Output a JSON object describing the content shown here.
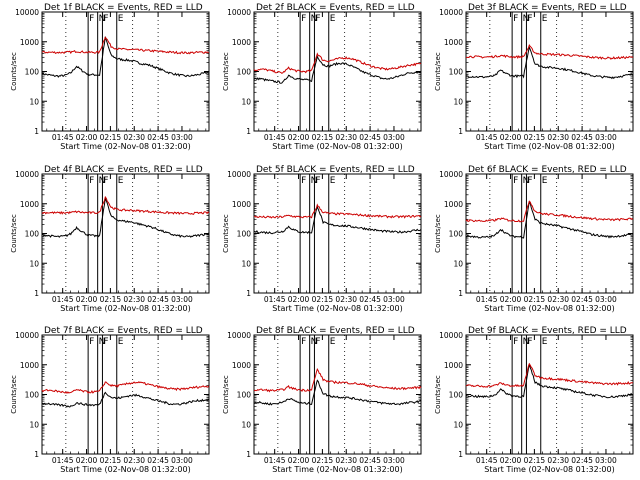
{
  "chart_data": [
    {
      "type": "line",
      "title": "Det 1f BLACK = Events, RED = LLD",
      "xlabel": "Start Time (02-Nov-08 01:32:00)",
      "ylabel": "Counts/sec",
      "yscale": "log",
      "ylim": [
        1,
        10000
      ],
      "series": [
        {
          "name": "Events",
          "color": "#000000",
          "values": [
            85,
            78,
            72,
            70,
            74,
            90,
            150,
            105,
            80,
            78,
            76,
            1400,
            350,
            270,
            250,
            240,
            220,
            190,
            175,
            155,
            130,
            110,
            92,
            82,
            75,
            70,
            72,
            78,
            85,
            95
          ]
        },
        {
          "name": "LLD",
          "color": "#cc0000",
          "values": [
            440,
            445,
            440,
            435,
            440,
            450,
            480,
            455,
            440,
            440,
            445,
            1500,
            700,
            580,
            560,
            550,
            540,
            520,
            510,
            495,
            480,
            465,
            450,
            440,
            432,
            425,
            430,
            438,
            445,
            450
          ]
        }
      ]
    },
    {
      "type": "line",
      "title": "Det 2f BLACK = Events, RED = LLD",
      "xlabel": "Start Time (02-Nov-08 01:32:00)",
      "ylabel": "Counts/sec",
      "yscale": "log",
      "ylim": [
        1,
        10000
      ],
      "series": [
        {
          "name": "Events",
          "color": "#000000",
          "values": [
            55,
            58,
            52,
            48,
            45,
            42,
            75,
            60,
            55,
            52,
            50,
            320,
            170,
            150,
            175,
            190,
            180,
            150,
            120,
            95,
            80,
            70,
            60,
            56,
            60,
            68,
            80,
            90,
            95,
            95
          ]
        },
        {
          "name": "LLD",
          "color": "#cc0000",
          "values": [
            110,
            120,
            115,
            105,
            95,
            90,
            130,
            110,
            100,
            100,
            105,
            400,
            240,
            225,
            250,
            280,
            290,
            270,
            230,
            190,
            160,
            140,
            125,
            120,
            125,
            135,
            150,
            165,
            175,
            180
          ]
        }
      ]
    },
    {
      "type": "line",
      "title": "Det 3f BLACK = Events, RED = LLD",
      "xlabel": "Start Time (02-Nov-08 01:32:00)",
      "ylabel": "Counts/sec",
      "yscale": "log",
      "ylim": [
        1,
        10000
      ],
      "series": [
        {
          "name": "Events",
          "color": "#000000",
          "values": [
            70,
            68,
            66,
            65,
            67,
            72,
            110,
            85,
            72,
            70,
            70,
            700,
            180,
            150,
            140,
            135,
            130,
            120,
            110,
            100,
            90,
            80,
            72,
            68,
            65,
            63,
            65,
            70,
            75,
            80
          ]
        },
        {
          "name": "LLD",
          "color": "#cc0000",
          "values": [
            320,
            318,
            312,
            305,
            310,
            320,
            345,
            325,
            310,
            310,
            315,
            720,
            420,
            390,
            380,
            375,
            370,
            360,
            350,
            340,
            325,
            312,
            300,
            292,
            285,
            282,
            285,
            292,
            298,
            302
          ]
        }
      ]
    },
    {
      "type": "line",
      "title": "Det 4f BLACK = Events, RED = LLD",
      "xlabel": "Start Time (02-Nov-08 01:32:00)",
      "ylabel": "Counts/sec",
      "yscale": "log",
      "ylim": [
        1,
        10000
      ],
      "series": [
        {
          "name": "Events",
          "color": "#000000",
          "values": [
            92,
            85,
            80,
            78,
            82,
            98,
            160,
            115,
            88,
            84,
            82,
            1600,
            380,
            290,
            265,
            250,
            235,
            205,
            185,
            165,
            140,
            118,
            100,
            88,
            82,
            78,
            80,
            86,
            92,
            102
          ]
        },
        {
          "name": "LLD",
          "color": "#cc0000",
          "values": [
            500,
            505,
            498,
            492,
            498,
            508,
            540,
            512,
            498,
            498,
            505,
            1700,
            760,
            640,
            615,
            605,
            595,
            575,
            560,
            545,
            530,
            512,
            498,
            488,
            478,
            470,
            475,
            485,
            492,
            498
          ]
        }
      ]
    },
    {
      "type": "line",
      "title": "Det 5f BLACK = Events, RED = LLD",
      "xlabel": "Start Time (02-Nov-08 01:32:00)",
      "ylabel": "Counts/sec",
      "yscale": "log",
      "ylim": [
        1,
        10000
      ],
      "series": [
        {
          "name": "Events",
          "color": "#000000",
          "values": [
            115,
            112,
            108,
            106,
            110,
            118,
            170,
            130,
            112,
            110,
            108,
            850,
            240,
            200,
            190,
            185,
            180,
            170,
            160,
            150,
            140,
            130,
            122,
            118,
            114,
            112,
            114,
            120,
            128,
            135
          ]
        },
        {
          "name": "LLD",
          "color": "#cc0000",
          "values": [
            365,
            362,
            355,
            350,
            355,
            365,
            400,
            372,
            358,
            356,
            362,
            880,
            520,
            475,
            460,
            455,
            450,
            438,
            425,
            412,
            398,
            388,
            378,
            372,
            368,
            365,
            368,
            375,
            382,
            388
          ]
        }
      ]
    },
    {
      "type": "line",
      "title": "Det 6f BLACK = Events, RED = LLD",
      "xlabel": "Start Time (02-Nov-08 01:32:00)",
      "ylabel": "Counts/sec",
      "yscale": "log",
      "ylim": [
        1,
        10000
      ],
      "series": [
        {
          "name": "Events",
          "color": "#000000",
          "values": [
            82,
            80,
            76,
            74,
            77,
            85,
            140,
            100,
            80,
            78,
            76,
            1200,
            300,
            225,
            205,
            192,
            180,
            160,
            145,
            130,
            115,
            102,
            92,
            86,
            82,
            78,
            80,
            84,
            88,
            92
          ]
        },
        {
          "name": "LLD",
          "color": "#cc0000",
          "values": [
            275,
            272,
            268,
            262,
            268,
            280,
            320,
            290,
            270,
            268,
            272,
            1300,
            560,
            470,
            445,
            432,
            420,
            398,
            380,
            362,
            345,
            330,
            315,
            305,
            296,
            290,
            292,
            298,
            305,
            310
          ]
        }
      ]
    },
    {
      "type": "line",
      "title": "Det 7f BLACK = Events, RED = LLD",
      "xlabel": "Start Time (02-Nov-08 01:32:00)",
      "ylabel": "Counts/sec",
      "yscale": "log",
      "ylim": [
        1,
        10000
      ],
      "series": [
        {
          "name": "Events",
          "color": "#000000",
          "values": [
            48,
            50,
            46,
            44,
            42,
            40,
            52,
            48,
            45,
            44,
            46,
            120,
            80,
            75,
            80,
            90,
            95,
            90,
            80,
            70,
            62,
            56,
            50,
            47,
            48,
            52,
            58,
            62,
            65,
            66
          ]
        },
        {
          "name": "LLD",
          "color": "#cc0000",
          "values": [
            130,
            140,
            135,
            125,
            118,
            112,
            145,
            130,
            122,
            122,
            128,
            260,
            200,
            195,
            210,
            235,
            255,
            250,
            230,
            205,
            185,
            170,
            158,
            150,
            152,
            158,
            168,
            178,
            185,
            190
          ]
        }
      ]
    },
    {
      "type": "line",
      "title": "Det 8f BLACK = Events, RED = LLD",
      "xlabel": "Start Time (02-Nov-08 01:32:00)",
      "ylabel": "Counts/sec",
      "yscale": "log",
      "ylim": [
        1,
        10000
      ],
      "series": [
        {
          "name": "Events",
          "color": "#000000",
          "values": [
            55,
            53,
            50,
            48,
            50,
            55,
            75,
            62,
            52,
            50,
            50,
            300,
            110,
            90,
            85,
            82,
            80,
            75,
            70,
            65,
            60,
            56,
            52,
            50,
            49,
            48,
            50,
            53,
            56,
            60
          ]
        },
        {
          "name": "LLD",
          "color": "#cc0000",
          "values": [
            140,
            145,
            140,
            135,
            138,
            145,
            180,
            155,
            142,
            140,
            145,
            700,
            320,
            270,
            260,
            255,
            250,
            240,
            230,
            215,
            200,
            188,
            176,
            168,
            162,
            158,
            160,
            165,
            170,
            175
          ]
        }
      ]
    },
    {
      "type": "line",
      "title": "Det 9f BLACK = Events, RED = LLD",
      "xlabel": "Start Time (02-Nov-08 01:32:00)",
      "ylabel": "Counts/sec",
      "yscale": "log",
      "ylim": [
        1,
        10000
      ],
      "series": [
        {
          "name": "Events",
          "color": "#000000",
          "values": [
            92,
            90,
            86,
            84,
            86,
            95,
            150,
            110,
            90,
            88,
            86,
            1000,
            260,
            200,
            185,
            175,
            165,
            150,
            138,
            126,
            115,
            105,
            96,
            90,
            86,
            83,
            85,
            90,
            96,
            102
          ]
        },
        {
          "name": "LLD",
          "color": "#cc0000",
          "values": [
            198,
            196,
            192,
            188,
            192,
            200,
            240,
            210,
            196,
            195,
            198,
            1150,
            440,
            370,
            350,
            340,
            330,
            312,
            298,
            284,
            270,
            258,
            246,
            238,
            232,
            228,
            230,
            236,
            242,
            248
          ]
        }
      ]
    }
  ],
  "shared": {
    "x_ticks": [
      "01:45",
      "02:00",
      "02:15",
      "02:30",
      "02:45",
      "03:00"
    ],
    "y_ticks": [
      "1",
      "10",
      "100",
      "1000",
      "10000"
    ],
    "interval_marks": [
      "F",
      "N",
      "F",
      "E"
    ]
  }
}
